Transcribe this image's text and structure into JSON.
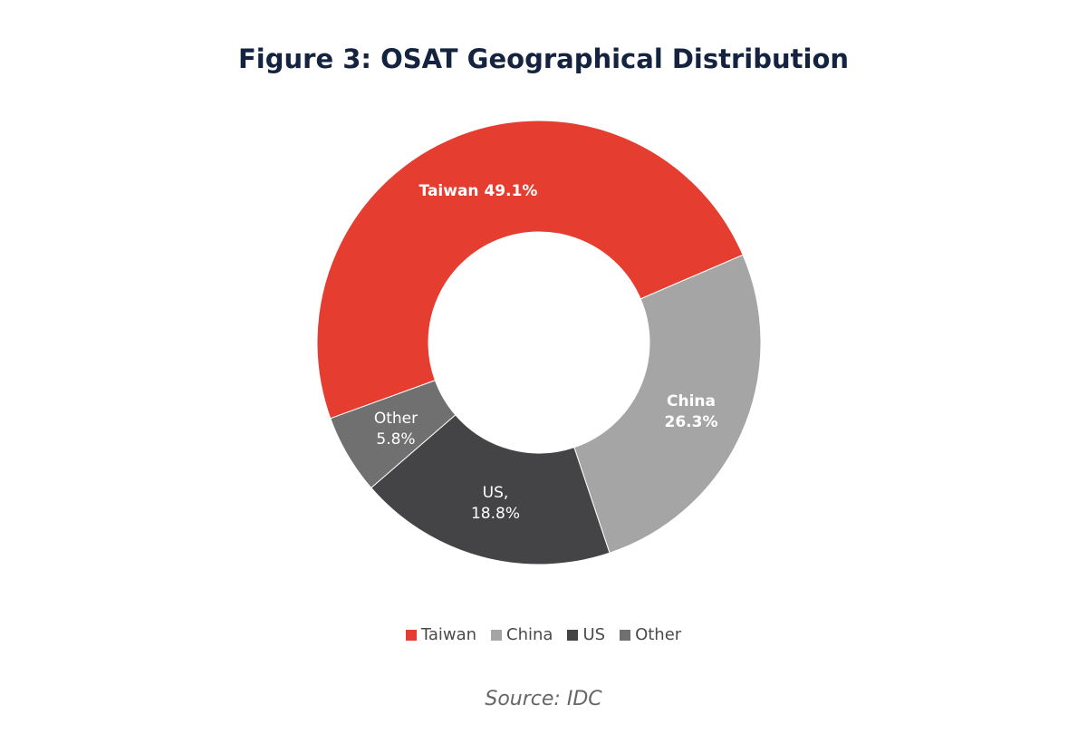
{
  "chart_data": {
    "type": "pie",
    "donut": true,
    "title": "Figure 3: OSAT Geographical Distribution",
    "categories": [
      "Taiwan",
      "China",
      "US",
      "Other"
    ],
    "values": [
      49.1,
      26.3,
      18.8,
      5.8
    ],
    "unit": "%",
    "colors": [
      "#e53d30",
      "#a5a5a5",
      "#444446",
      "#707071"
    ],
    "data_labels": [
      [
        "Taiwan 49.1%"
      ],
      [
        "China",
        "26.3%"
      ],
      [
        "US,",
        "18.8%"
      ],
      [
        "Other",
        "5.8%"
      ]
    ],
    "legend": [
      "Taiwan",
      "China",
      "US",
      "Other"
    ],
    "legend_placement": "bottom",
    "source": "Source: IDC"
  }
}
